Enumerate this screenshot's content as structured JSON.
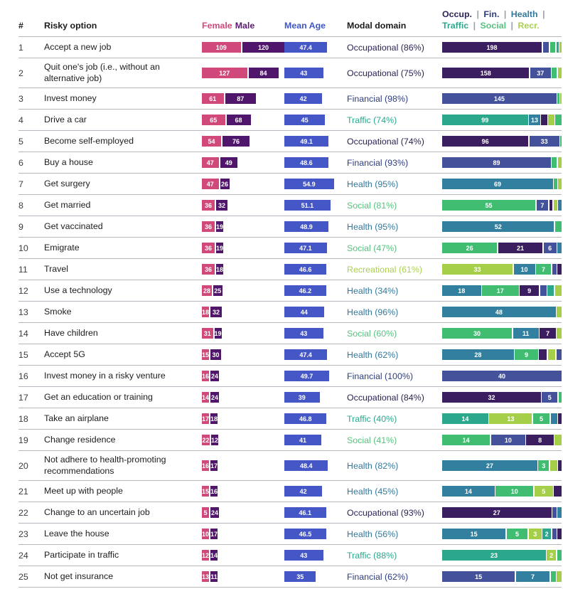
{
  "header": {
    "num": "#",
    "option": "Risky option",
    "female": "Female",
    "male": "Male",
    "mean_age": "Mean Age",
    "modal_domain": "Modal domain",
    "legend_separator": "|"
  },
  "palette": {
    "occ": "#3b1e5f",
    "fin": "#44519b",
    "hea": "#337f9f",
    "tra": "#2ba78c",
    "soc": "#41bd72",
    "rec": "#a5cf48",
    "female": "#d1487b",
    "male": "#4f166b",
    "age": "#4556c6"
  },
  "text_colors": {
    "occ": "#2c2355",
    "fin": "#2e3d7d",
    "hea": "#35799c",
    "tra": "#2ba78c",
    "soc": "#57c280",
    "rec": "#aad153",
    "female": "#d1487b",
    "male": "#5b1a72",
    "age": "#3e55c4",
    "dark": "#1b1b1d"
  },
  "chart_data": {
    "type": "table",
    "title": "",
    "columns": [
      "#",
      "Risky option",
      "Female",
      "Male",
      "Mean Age",
      "Modal domain",
      "Domain distribution (Occup. | Fin. | Health | Traffic | Social | Recr.)"
    ],
    "legend_line1": [
      {
        "key": "occ",
        "label": "Occup."
      },
      {
        "key": "fin",
        "label": "Fin."
      },
      {
        "key": "hea",
        "label": "Health"
      }
    ],
    "legend_line2": [
      {
        "key": "tra",
        "label": "Traffic"
      },
      {
        "key": "soc",
        "label": "Social"
      },
      {
        "key": "rec",
        "label": "Recr."
      }
    ],
    "rows": [
      {
        "num": "1",
        "option": "Accept a new job",
        "female": 109,
        "male": 120,
        "age": "47.4",
        "domain": "Occupational (86%)",
        "dkey": "occ",
        "segments": [
          {
            "d": "occ",
            "v": 198
          },
          {
            "d": "fin",
            "v": 12
          },
          {
            "d": "soc",
            "v": 11
          },
          {
            "d": "tra",
            "v": 4
          },
          {
            "d": "rec",
            "v": 4
          }
        ]
      },
      {
        "num": "2",
        "option": "Quit one's job (i.e., without an alternative job)",
        "female": 127,
        "male": 84,
        "age": "43",
        "domain": "Occupational (75%)",
        "dkey": "occ",
        "segments": [
          {
            "d": "occ",
            "v": 158
          },
          {
            "d": "fin",
            "v": 37
          },
          {
            "d": "soc",
            "v": 9
          },
          {
            "d": "rec",
            "v": 7
          }
        ]
      },
      {
        "num": "3",
        "option": "Invest money",
        "female": 61,
        "male": 87,
        "age": "42",
        "domain": "Financial (98%)",
        "dkey": "fin",
        "segments": [
          {
            "d": "fin",
            "v": 145
          },
          {
            "d": "soc",
            "v": 2
          },
          {
            "d": "rec",
            "v": 1
          }
        ]
      },
      {
        "num": "4",
        "option": "Drive a car",
        "female": 65,
        "male": 68,
        "age": "45",
        "domain": "Traffic (74%)",
        "dkey": "tra",
        "segments": [
          {
            "d": "tra",
            "v": 99
          },
          {
            "d": "hea",
            "v": 13
          },
          {
            "d": "occ",
            "v": 7
          },
          {
            "d": "rec",
            "v": 7
          },
          {
            "d": "soc",
            "v": 7
          }
        ]
      },
      {
        "num": "5",
        "option": "Become self-employed",
        "female": 54,
        "male": 76,
        "age": "49.1",
        "domain": "Occupational (74%)",
        "dkey": "occ",
        "segments": [
          {
            "d": "occ",
            "v": 96
          },
          {
            "d": "fin",
            "v": 33
          },
          {
            "d": "soc",
            "v": 1
          }
        ]
      },
      {
        "num": "6",
        "option": "Buy a house",
        "female": 47,
        "male": 49,
        "age": "48.6",
        "domain": "Financial (93%)",
        "dkey": "fin",
        "segments": [
          {
            "d": "fin",
            "v": 89
          },
          {
            "d": "soc",
            "v": 4
          },
          {
            "d": "rec",
            "v": 3
          }
        ]
      },
      {
        "num": "7",
        "option": "Get surgery",
        "female": 47,
        "male": 26,
        "age": "54.9",
        "domain": "Health (95%)",
        "dkey": "hea",
        "segments": [
          {
            "d": "hea",
            "v": 69
          },
          {
            "d": "soc",
            "v": 2
          },
          {
            "d": "rec",
            "v": 2
          }
        ]
      },
      {
        "num": "8",
        "option": "Get married",
        "female": 36,
        "male": 32,
        "age": "51.1",
        "domain": "Social (81%)",
        "dkey": "soc",
        "segments": [
          {
            "d": "soc",
            "v": 55
          },
          {
            "d": "fin",
            "v": 7
          },
          {
            "d": "occ",
            "v": 2
          },
          {
            "d": "rec",
            "v": 2
          },
          {
            "d": "hea",
            "v": 2
          }
        ]
      },
      {
        "num": "9",
        "option": "Get vaccinated",
        "female": 36,
        "male": 19,
        "age": "48.9",
        "domain": "Health (95%)",
        "dkey": "hea",
        "segments": [
          {
            "d": "hea",
            "v": 52
          },
          {
            "d": "soc",
            "v": 3
          }
        ]
      },
      {
        "num": "10",
        "option": "Emigrate",
        "female": 36,
        "male": 19,
        "age": "47.1",
        "domain": "Social (47%)",
        "dkey": "soc",
        "segments": [
          {
            "d": "soc",
            "v": 26
          },
          {
            "d": "occ",
            "v": 21
          },
          {
            "d": "fin",
            "v": 6
          },
          {
            "d": "hea",
            "v": 2
          }
        ]
      },
      {
        "num": "11",
        "option": "Travel",
        "female": 36,
        "male": 18,
        "age": "46.6",
        "domain": "Recreational (61%)",
        "dkey": "rec",
        "segments": [
          {
            "d": "rec",
            "v": 33
          },
          {
            "d": "hea",
            "v": 10
          },
          {
            "d": "soc",
            "v": 7
          },
          {
            "d": "fin",
            "v": 2
          },
          {
            "d": "occ",
            "v": 2
          }
        ]
      },
      {
        "num": "12",
        "option": "Use a technology",
        "female": 28,
        "male": 25,
        "age": "46.2",
        "domain": "Health (34%)",
        "dkey": "hea",
        "segments": [
          {
            "d": "hea",
            "v": 18
          },
          {
            "d": "soc",
            "v": 17
          },
          {
            "d": "occ",
            "v": 9
          },
          {
            "d": "fin",
            "v": 3
          },
          {
            "d": "tra",
            "v": 3
          },
          {
            "d": "rec",
            "v": 3
          }
        ]
      },
      {
        "num": "13",
        "option": "Smoke",
        "female": 18,
        "male": 32,
        "age": "44",
        "domain": "Health (96%)",
        "dkey": "hea",
        "segments": [
          {
            "d": "hea",
            "v": 48
          },
          {
            "d": "rec",
            "v": 2
          }
        ]
      },
      {
        "num": "14",
        "option": "Have children",
        "female": 31,
        "male": 19,
        "age": "43",
        "domain": "Social (60%)",
        "dkey": "soc",
        "segments": [
          {
            "d": "soc",
            "v": 30
          },
          {
            "d": "hea",
            "v": 11
          },
          {
            "d": "occ",
            "v": 7
          },
          {
            "d": "rec",
            "v": 2
          }
        ]
      },
      {
        "num": "15",
        "option": "Accept 5G",
        "female": 15,
        "male": 30,
        "age": "47.4",
        "domain": "Health (62%)",
        "dkey": "hea",
        "segments": [
          {
            "d": "hea",
            "v": 28
          },
          {
            "d": "soc",
            "v": 9
          },
          {
            "d": "occ",
            "v": 3
          },
          {
            "d": "rec",
            "v": 3
          },
          {
            "d": "fin",
            "v": 2
          }
        ]
      },
      {
        "num": "16",
        "option": "Invest money in a risky venture",
        "female": 16,
        "male": 24,
        "age": "49.7",
        "domain": "Financial (100%)",
        "dkey": "fin",
        "segments": [
          {
            "d": "fin",
            "v": 40
          }
        ]
      },
      {
        "num": "17",
        "option": "Get an education or training",
        "female": 14,
        "male": 24,
        "age": "39",
        "domain": "Occupational (84%)",
        "dkey": "occ",
        "segments": [
          {
            "d": "occ",
            "v": 32
          },
          {
            "d": "fin",
            "v": 5
          },
          {
            "d": "soc",
            "v": 1
          }
        ]
      },
      {
        "num": "18",
        "option": "Take an airplane",
        "female": 17,
        "male": 18,
        "age": "46.8",
        "domain": "Traffic (40%)",
        "dkey": "tra",
        "segments": [
          {
            "d": "tra",
            "v": 14
          },
          {
            "d": "rec",
            "v": 13
          },
          {
            "d": "soc",
            "v": 5
          },
          {
            "d": "hea",
            "v": 2
          },
          {
            "d": "occ",
            "v": 1
          }
        ]
      },
      {
        "num": "19",
        "option": "Change residence",
        "female": 22,
        "male": 12,
        "age": "41",
        "domain": "Social (41%)",
        "dkey": "soc",
        "segments": [
          {
            "d": "soc",
            "v": 14
          },
          {
            "d": "fin",
            "v": 10
          },
          {
            "d": "occ",
            "v": 8
          },
          {
            "d": "rec",
            "v": 2
          }
        ]
      },
      {
        "num": "20",
        "option": "Not adhere to health-promoting recommendations",
        "female": 16,
        "male": 17,
        "age": "48.4",
        "domain": "Health (82%)",
        "dkey": "hea",
        "segments": [
          {
            "d": "hea",
            "v": 27
          },
          {
            "d": "soc",
            "v": 3
          },
          {
            "d": "rec",
            "v": 2
          },
          {
            "d": "occ",
            "v": 1
          }
        ]
      },
      {
        "num": "21",
        "option": "Meet up with people",
        "female": 15,
        "male": 16,
        "age": "42",
        "domain": "Health (45%)",
        "dkey": "hea",
        "segments": [
          {
            "d": "hea",
            "v": 14
          },
          {
            "d": "soc",
            "v": 10
          },
          {
            "d": "rec",
            "v": 5
          },
          {
            "d": "occ",
            "v": 2
          }
        ]
      },
      {
        "num": "22",
        "option": "Change to an uncertain job",
        "female": 5,
        "male": 24,
        "age": "46.1",
        "domain": "Occupational (93%)",
        "dkey": "occ",
        "segments": [
          {
            "d": "occ",
            "v": 27
          },
          {
            "d": "fin",
            "v": 1
          },
          {
            "d": "hea",
            "v": 1
          }
        ]
      },
      {
        "num": "23",
        "option": "Leave the house",
        "female": 10,
        "male": 17,
        "age": "46.5",
        "domain": "Health (56%)",
        "dkey": "hea",
        "segments": [
          {
            "d": "hea",
            "v": 15
          },
          {
            "d": "soc",
            "v": 5
          },
          {
            "d": "rec",
            "v": 3
          },
          {
            "d": "tra",
            "v": 2
          },
          {
            "d": "fin",
            "v": 1
          },
          {
            "d": "occ",
            "v": 1
          }
        ]
      },
      {
        "num": "24",
        "option": "Participate in traffic",
        "female": 12,
        "male": 14,
        "age": "43",
        "domain": "Traffic (88%)",
        "dkey": "tra",
        "segments": [
          {
            "d": "tra",
            "v": 23
          },
          {
            "d": "rec",
            "v": 2
          },
          {
            "d": "soc",
            "v": 1
          }
        ]
      },
      {
        "num": "25",
        "option": "Not get insurance",
        "female": 13,
        "male": 11,
        "age": "35",
        "domain": "Financial (62%)",
        "dkey": "fin",
        "segments": [
          {
            "d": "fin",
            "v": 15
          },
          {
            "d": "hea",
            "v": 7
          },
          {
            "d": "soc",
            "v": 1
          },
          {
            "d": "rec",
            "v": 1
          }
        ]
      }
    ]
  }
}
